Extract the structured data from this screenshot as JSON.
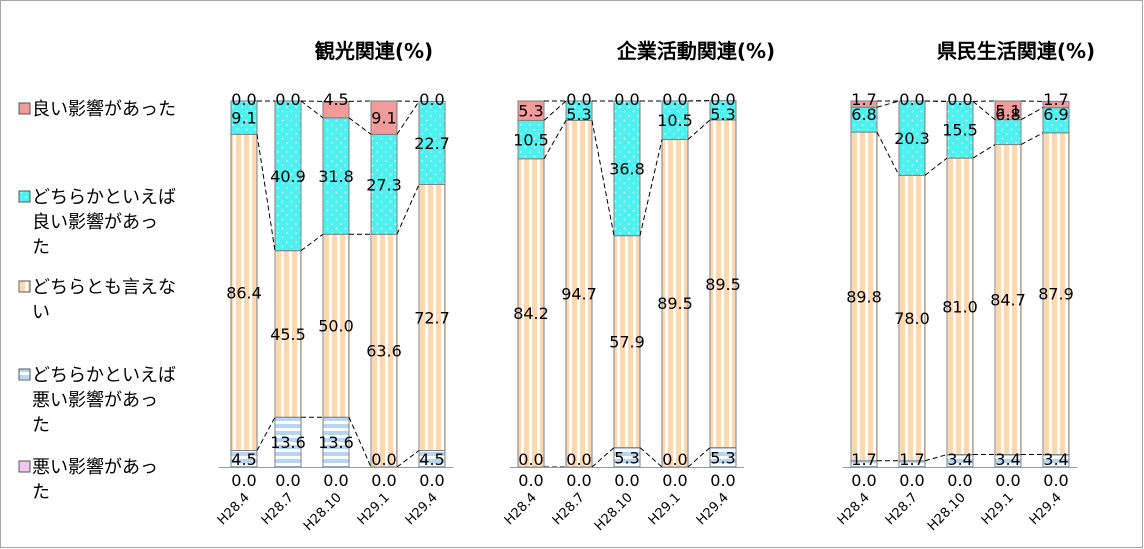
{
  "legend": [
    {
      "key": "good",
      "lines": [
        "良い影響があった"
      ],
      "fill": "#f29b9b",
      "pattern": "solid"
    },
    {
      "key": "rather_good",
      "lines": [
        "どちらかといえば",
        "良い影響があっ",
        "た"
      ],
      "fill": "#4ff0f0",
      "pattern": "dots"
    },
    {
      "key": "neutral",
      "lines": [
        "どちらとも言えな",
        "い"
      ],
      "fill": "#fbd8b4",
      "pattern": "vstripes"
    },
    {
      "key": "rather_bad",
      "lines": [
        "どちらかといえば",
        "悪い影響があっ",
        "た"
      ],
      "fill": "#b8d6f2",
      "pattern": "hstripes"
    },
    {
      "key": "bad",
      "lines": [
        "悪い影響があっ",
        "た"
      ],
      "fill": "#f3c6f0",
      "pattern": "solid"
    }
  ],
  "chart_data": [
    {
      "type": "bar",
      "stacked": true,
      "title": "観光関連(%)",
      "categories": [
        "H28.4",
        "H28.7",
        "H28.10",
        "H29.1",
        "H29.4"
      ],
      "ylim": [
        0,
        100
      ],
      "series": [
        {
          "name": "悪い影響があった",
          "key": "bad",
          "values": [
            0.0,
            0.0,
            0.0,
            0.0,
            0.0
          ]
        },
        {
          "name": "どちらかといえば悪い影響があった",
          "key": "rather_bad",
          "values": [
            4.5,
            13.6,
            13.6,
            0.0,
            4.5
          ]
        },
        {
          "name": "どちらとも言えない",
          "key": "neutral",
          "values": [
            86.4,
            45.5,
            50.0,
            63.6,
            72.7
          ]
        },
        {
          "name": "どちらかといえば良い影響があった",
          "key": "rather_good",
          "values": [
            9.1,
            40.9,
            31.8,
            27.3,
            22.7
          ]
        },
        {
          "name": "良い影響があった",
          "key": "good",
          "values": [
            0.0,
            0.0,
            4.5,
            9.1,
            0.0
          ]
        }
      ]
    },
    {
      "type": "bar",
      "stacked": true,
      "title": "企業活動関連(%)",
      "categories": [
        "H28.4",
        "H28.7",
        "H28.10",
        "H29.1",
        "H29.4"
      ],
      "ylim": [
        0,
        100
      ],
      "series": [
        {
          "name": "悪い影響があった",
          "key": "bad",
          "values": [
            0.0,
            0.0,
            0.0,
            0.0,
            0.0
          ]
        },
        {
          "name": "どちらかといえば悪い影響があった",
          "key": "rather_bad",
          "values": [
            0.0,
            0.0,
            5.3,
            0.0,
            5.3
          ]
        },
        {
          "name": "どちらとも言えない",
          "key": "neutral",
          "values": [
            84.2,
            94.7,
            57.9,
            89.5,
            89.5
          ]
        },
        {
          "name": "どちらかといえば良い影響があった",
          "key": "rather_good",
          "values": [
            10.5,
            5.3,
            36.8,
            10.5,
            5.3
          ]
        },
        {
          "name": "良い影響があった",
          "key": "good",
          "values": [
            5.3,
            0.0,
            0.0,
            0.0,
            0.0
          ]
        }
      ]
    },
    {
      "type": "bar",
      "stacked": true,
      "title": "県民生活関連(%)",
      "categories": [
        "H28.4",
        "H28.7",
        "H28.10",
        "H29.1",
        "H29.4"
      ],
      "ylim": [
        0,
        100
      ],
      "series": [
        {
          "name": "悪い影響があった",
          "key": "bad",
          "values": [
            0.0,
            0.0,
            0.0,
            0.0,
            0.0
          ]
        },
        {
          "name": "どちらかといえば悪い影響があった",
          "key": "rather_bad",
          "values": [
            1.7,
            1.7,
            3.4,
            3.4,
            3.4
          ]
        },
        {
          "name": "どちらとも言えない",
          "key": "neutral",
          "values": [
            89.8,
            78.0,
            81.0,
            84.7,
            87.9
          ]
        },
        {
          "name": "どちらかといえば良い影響があった",
          "key": "rather_good",
          "values": [
            6.8,
            20.3,
            15.5,
            6.8,
            6.9
          ]
        },
        {
          "name": "良い影響があった",
          "key": "good",
          "values": [
            1.7,
            0.0,
            0.0,
            5.1,
            1.7
          ]
        }
      ]
    }
  ]
}
